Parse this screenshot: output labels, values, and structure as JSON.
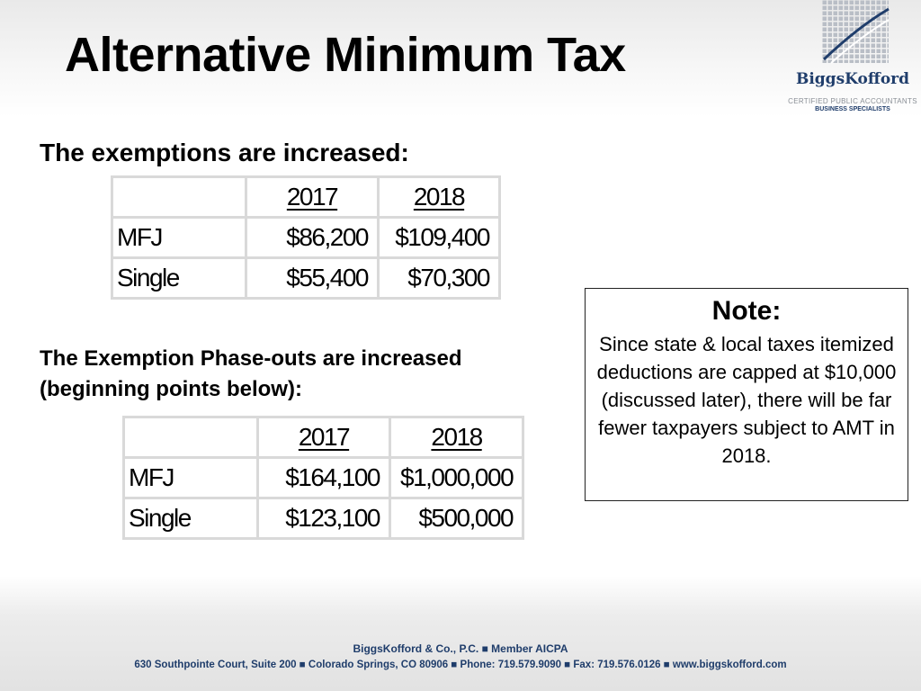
{
  "slide": {
    "title": "Alternative Minimum Tax"
  },
  "logo": {
    "name": "BiggsKofford",
    "tagline": "CERTIFIED PUBLIC ACCOUNTANTS",
    "subtagline": "BUSINESS SPECIALISTS"
  },
  "exemptions": {
    "heading": "The exemptions are increased:",
    "headers": [
      "",
      "2017",
      "2018"
    ],
    "rows": [
      {
        "label": "MFJ",
        "y2017": "$86,200",
        "y2018": "$109,400"
      },
      {
        "label": "Single",
        "y2017": "$55,400",
        "y2018": "$70,300"
      }
    ]
  },
  "phaseouts": {
    "heading": "The Exemption Phase-outs are increased (beginning points below):",
    "headers": [
      "",
      "2017",
      "2018"
    ],
    "rows": [
      {
        "label": "MFJ",
        "y2017": "$164,100",
        "y2018": "$1,000,000"
      },
      {
        "label": "Single",
        "y2017": "$123,100",
        "y2018": "$500,000"
      }
    ]
  },
  "note": {
    "title": "Note:",
    "body": "Since state & local taxes itemized deductions are capped at $10,000 (discussed later), there will be far fewer taxpayers subject to AMT in 2018."
  },
  "footer": {
    "line1": "BiggsKofford & Co., P.C.  ■  Member AICPA",
    "line2": "630 Southpointe Court, Suite 200  ■  Colorado Springs, CO 80906  ■  Phone: 719.579.9090  ■  Fax: 719.576.0126  ■  www.biggskofford.com"
  },
  "colors": {
    "brand_navy": "#1f3d6b",
    "table_border": "#d9d9d9"
  }
}
